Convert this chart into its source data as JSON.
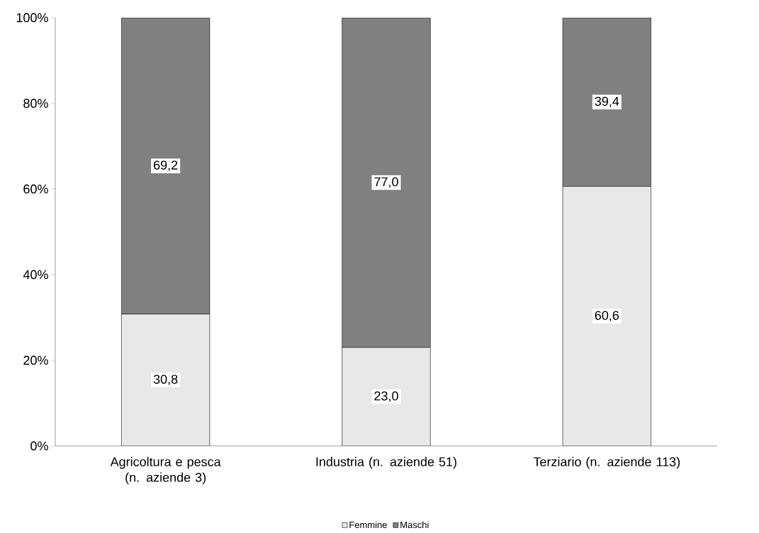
{
  "chart_data": {
    "type": "bar",
    "stacked": true,
    "categories": [
      "Agricoltura e pesca (n. aziende 3)",
      "Industria (n. aziende 51)",
      "Terziario (n. aziende 113)"
    ],
    "series": [
      {
        "name": "Femmine",
        "color": "#e8e8e8",
        "values": [
          30.8,
          23.0,
          60.6
        ],
        "value_labels": [
          "30,8",
          "23,0",
          "60,6"
        ]
      },
      {
        "name": "Maschi",
        "color": "#808080",
        "values": [
          69.2,
          77.0,
          39.4
        ],
        "value_labels": [
          "69,2",
          "77,0",
          "39,4"
        ]
      }
    ],
    "ylim": [
      0,
      100
    ],
    "yticks": [
      {
        "value": 0,
        "label": "0%"
      },
      {
        "value": 20,
        "label": "20%"
      },
      {
        "value": 40,
        "label": "40%"
      },
      {
        "value": 60,
        "label": "60%"
      },
      {
        "value": 80,
        "label": "80%"
      },
      {
        "value": 100,
        "label": "100%"
      }
    ],
    "legend": "bottom",
    "grid": false
  }
}
